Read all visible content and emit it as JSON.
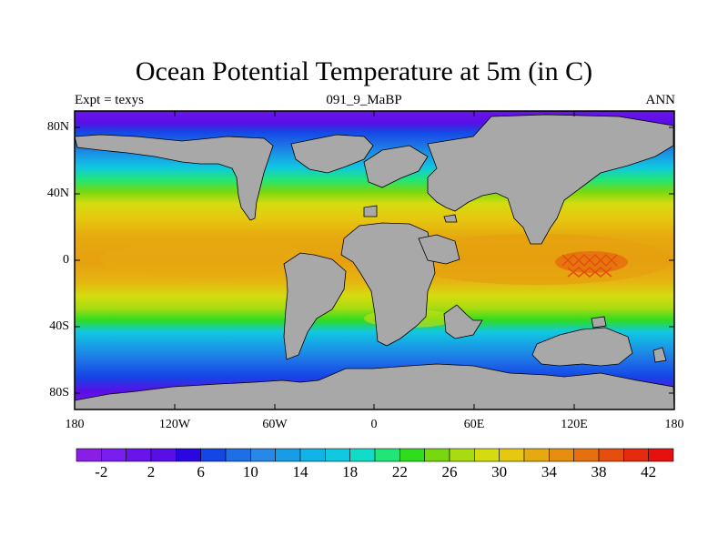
{
  "title": "Ocean Potential Temperature at 5m (in C)",
  "subtitle_left": "Expt = texys",
  "subtitle_center": "091_9_MaBP",
  "subtitle_right": "ANN",
  "lat_labels": [
    "80N",
    "40N",
    "0",
    "40S",
    "80S"
  ],
  "lon_labels": [
    "180",
    "120W",
    "60W",
    "0",
    "60E",
    "120E",
    "180"
  ],
  "land_color": "#a8a8a8",
  "colorbar": {
    "levels": [
      -4,
      -2,
      0,
      2,
      4,
      6,
      8,
      10,
      12,
      14,
      16,
      18,
      20,
      22,
      24,
      26,
      28,
      30,
      32,
      34,
      36,
      38,
      40,
      42
    ],
    "labels": [
      "-2",
      "2",
      "6",
      "10",
      "14",
      "18",
      "22",
      "26",
      "30",
      "34",
      "38",
      "42"
    ],
    "colors": [
      "#8a1ee6",
      "#7a1ef0",
      "#6a14ec",
      "#5a0ee6",
      "#2a06e0",
      "#1446e6",
      "#1e6ee6",
      "#2888e6",
      "#189ce6",
      "#10b4e6",
      "#10c8e0",
      "#10dcc8",
      "#20e678",
      "#30dc1e",
      "#78d810",
      "#a8dc10",
      "#d4dc10",
      "#e6c810",
      "#e6aa10",
      "#e68e10",
      "#e6700e",
      "#e64e10",
      "#e62a10",
      "#e61010"
    ]
  }
}
